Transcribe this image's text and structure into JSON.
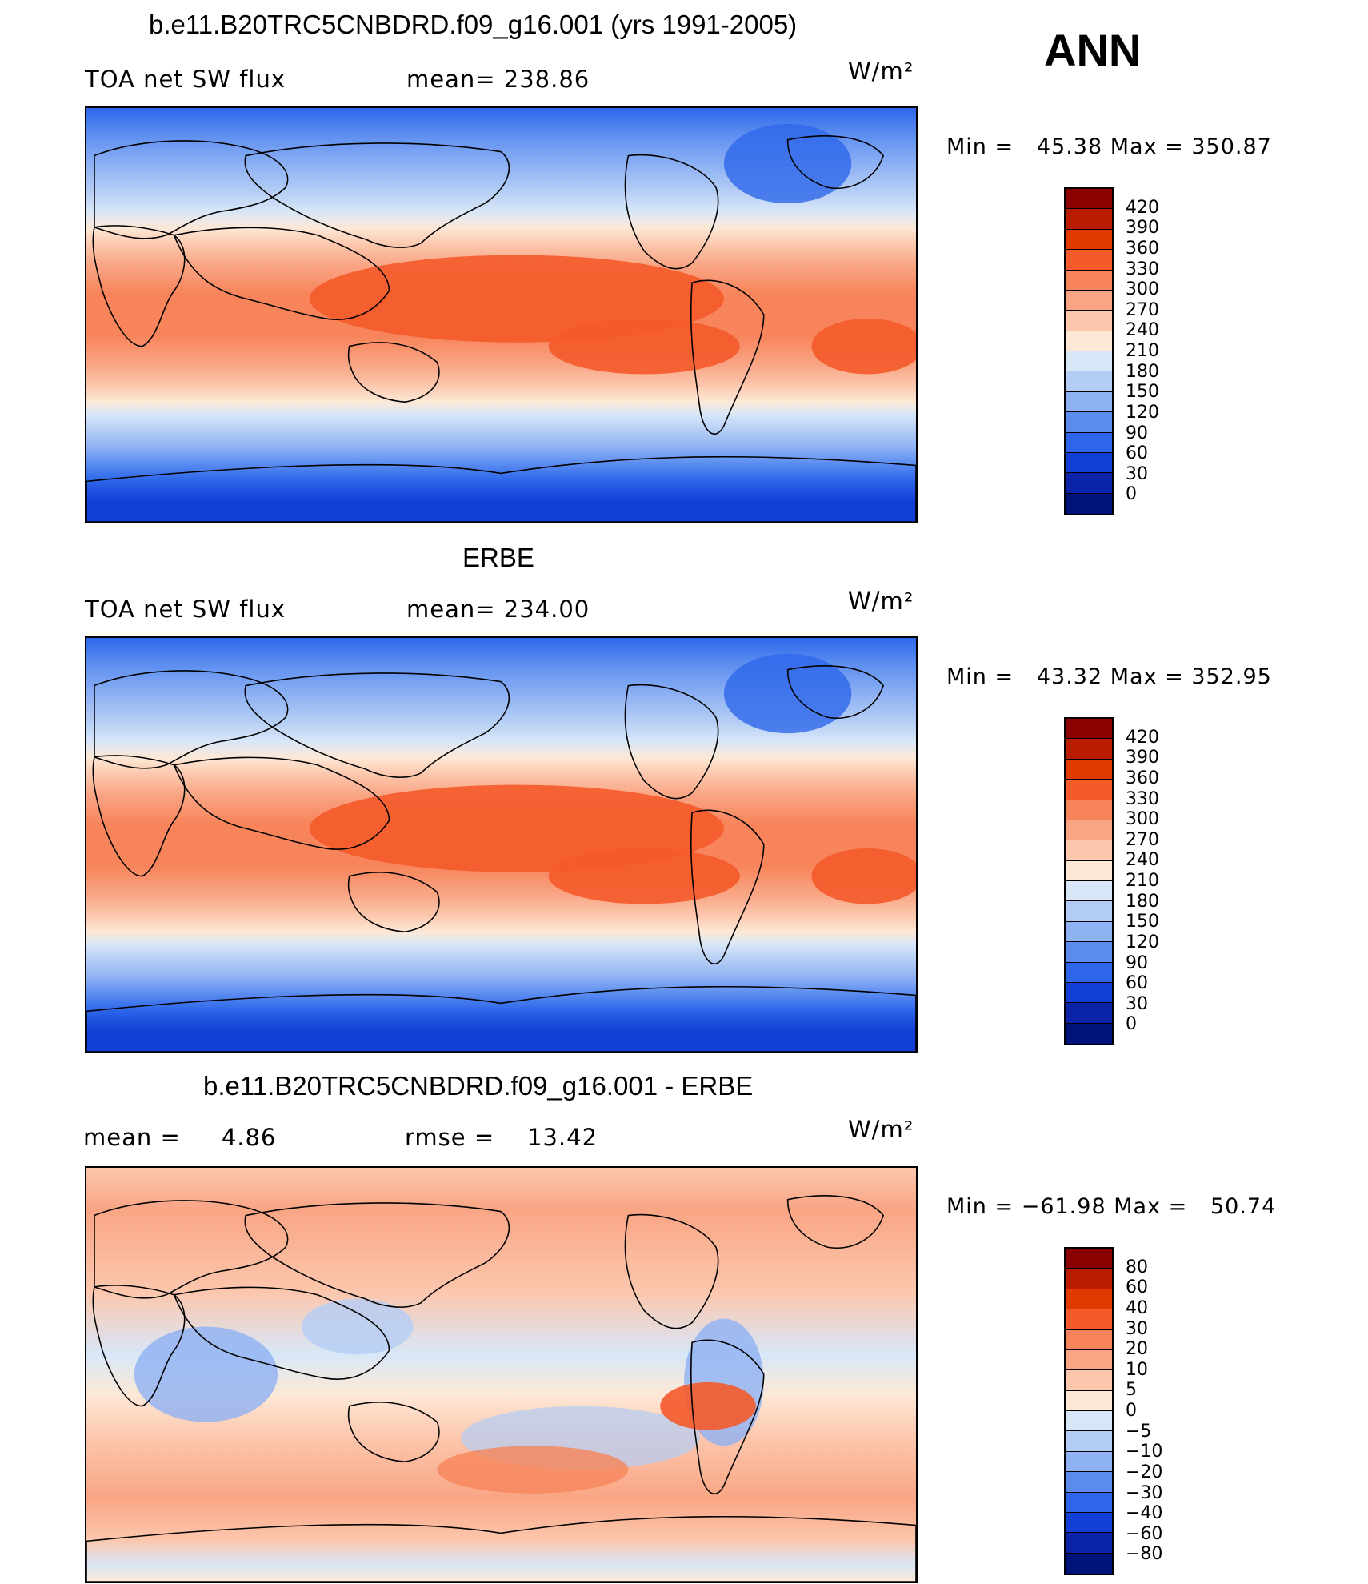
{
  "season": "ANN",
  "panels": [
    {
      "title": "b.e11.B20TRC5CNBDRD.f09_g16.001 (yrs 1991-2005)",
      "left_label": "TOA net SW flux",
      "center_label": "mean= 238.86",
      "units": "W/m²",
      "minmax": "Min =   45.38 Max = 350.87",
      "levels": [
        "420",
        "390",
        "360",
        "330",
        "300",
        "270",
        "240",
        "210",
        "180",
        "150",
        "120",
        "90",
        "60",
        "30",
        "0"
      ],
      "colors": [
        "#8b0000",
        "#b91c00",
        "#e03a00",
        "#f45a2a",
        "#f7845a",
        "#f9a584",
        "#fcc7ad",
        "#fde8d6",
        "#d8e7f8",
        "#b4cdf5",
        "#8fb2f4",
        "#5a8cf0",
        "#2d66ea",
        "#123fd5",
        "#0a23a8",
        "#00137a"
      ],
      "map_type": "absolute"
    },
    {
      "title": "ERBE",
      "left_label": "TOA net SW flux",
      "center_label": "mean= 234.00",
      "units": "W/m²",
      "minmax": "Min =   43.32 Max = 352.95",
      "levels": [
        "420",
        "390",
        "360",
        "330",
        "300",
        "270",
        "240",
        "210",
        "180",
        "150",
        "120",
        "90",
        "60",
        "30",
        "0"
      ],
      "colors": [
        "#8b0000",
        "#b91c00",
        "#e03a00",
        "#f45a2a",
        "#f7845a",
        "#f9a584",
        "#fcc7ad",
        "#fde8d6",
        "#d8e7f8",
        "#b4cdf5",
        "#8fb2f4",
        "#5a8cf0",
        "#2d66ea",
        "#123fd5",
        "#0a23a8",
        "#00137a"
      ],
      "map_type": "absolute"
    },
    {
      "title": "b.e11.B20TRC5CNBDRD.f09_g16.001 - ERBE",
      "left_label": "mean =     4.86",
      "center_label": "rmse =    13.42",
      "units": "W/m²",
      "minmax": "Min = −61.98 Max =   50.74",
      "levels": [
        "80",
        "60",
        "40",
        "30",
        "20",
        "10",
        "5",
        "0",
        "−5",
        "−10",
        "−20",
        "−30",
        "−40",
        "−60",
        "−80"
      ],
      "colors": [
        "#8b0000",
        "#b91c00",
        "#e03a00",
        "#f45a2a",
        "#f7845a",
        "#f9a584",
        "#fcc7ad",
        "#fde8d6",
        "#d8e7f8",
        "#b4cdf5",
        "#8fb2f4",
        "#5a8cf0",
        "#2d66ea",
        "#123fd5",
        "#0a23a8",
        "#00137a"
      ],
      "map_type": "difference"
    }
  ]
}
